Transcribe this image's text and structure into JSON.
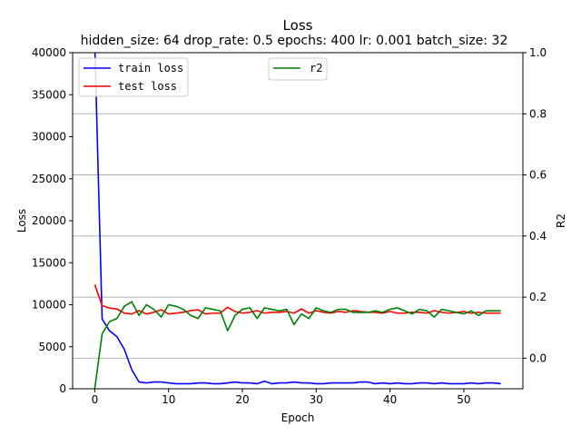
{
  "chart_data": {
    "type": "line",
    "title": "Loss",
    "subtitle": "hidden_size: 64 drop_rate: 0.5 epochs: 400 lr: 0.001 batch_size: 32",
    "xlabel": "Epoch",
    "ylabel": "Loss",
    "y2label": "R2",
    "xlim": [
      -3,
      58
    ],
    "ylim": [
      0,
      40000
    ],
    "y2lim": [
      -0.1,
      1.0
    ],
    "xticks": [
      0,
      10,
      20,
      30,
      40,
      50
    ],
    "yticks": [
      0,
      5000,
      10000,
      15000,
      20000,
      25000,
      30000,
      35000,
      40000
    ],
    "y2ticks": [
      0.0,
      0.2,
      0.4,
      0.6,
      0.8
    ],
    "grid": "horizontal on R2 axis",
    "legend_left": "top-left",
    "legend_right": "top-center",
    "colors": {
      "train": "#0000ff",
      "test": "#ff0000",
      "r2": "#008000",
      "grid": "#b0b0b0"
    },
    "x": [
      0,
      1,
      2,
      3,
      4,
      5,
      6,
      7,
      8,
      9,
      10,
      11,
      12,
      13,
      14,
      15,
      16,
      17,
      18,
      19,
      20,
      21,
      22,
      23,
      24,
      25,
      26,
      27,
      28,
      29,
      30,
      31,
      32,
      33,
      34,
      35,
      36,
      37,
      38,
      39,
      40,
      41,
      42,
      43,
      44,
      45,
      46,
      47,
      48,
      49,
      50,
      51,
      52,
      53,
      54,
      55
    ],
    "series": [
      {
        "name": "train loss",
        "axis": "left",
        "color": "#0000ff",
        "values": [
          41000,
          8300,
          6900,
          6200,
          4700,
          2300,
          800,
          700,
          800,
          800,
          700,
          600,
          600,
          600,
          700,
          700,
          600,
          600,
          700,
          800,
          700,
          700,
          600,
          900,
          600,
          700,
          700,
          800,
          700,
          700,
          600,
          600,
          700,
          700,
          700,
          700,
          800,
          800,
          600,
          700,
          600,
          700,
          600,
          600,
          700,
          700,
          600,
          700,
          600,
          600,
          600,
          700,
          600,
          700,
          700,
          600
        ]
      },
      {
        "name": "test loss",
        "axis": "left",
        "color": "#ff0000",
        "values": [
          12400,
          9900,
          9600,
          9500,
          9000,
          8900,
          9300,
          8900,
          9100,
          9400,
          8900,
          9000,
          9100,
          9300,
          9400,
          8900,
          9000,
          9000,
          9700,
          9200,
          9000,
          9100,
          9300,
          9000,
          9100,
          9100,
          9200,
          9000,
          9500,
          9000,
          9300,
          9100,
          9000,
          9200,
          9100,
          9300,
          9200,
          9100,
          9100,
          9000,
          9200,
          9000,
          9000,
          9100,
          9100,
          9000,
          9300,
          9100,
          9000,
          9100,
          9200,
          9000,
          9100,
          9000,
          9000,
          9000
        ]
      },
      {
        "name": "r2",
        "axis": "right",
        "color": "#008000",
        "values": [
          -0.1,
          0.08,
          0.12,
          0.13,
          0.17,
          0.185,
          0.14,
          0.175,
          0.16,
          0.135,
          0.175,
          0.17,
          0.16,
          0.14,
          0.13,
          0.165,
          0.16,
          0.155,
          0.09,
          0.14,
          0.16,
          0.165,
          0.13,
          0.165,
          0.16,
          0.155,
          0.16,
          0.11,
          0.145,
          0.13,
          0.165,
          0.155,
          0.15,
          0.16,
          0.16,
          0.15,
          0.15,
          0.15,
          0.155,
          0.15,
          0.16,
          0.165,
          0.155,
          0.145,
          0.16,
          0.155,
          0.135,
          0.16,
          0.155,
          0.15,
          0.145,
          0.155,
          0.14,
          0.155,
          0.155,
          0.155
        ]
      }
    ]
  }
}
